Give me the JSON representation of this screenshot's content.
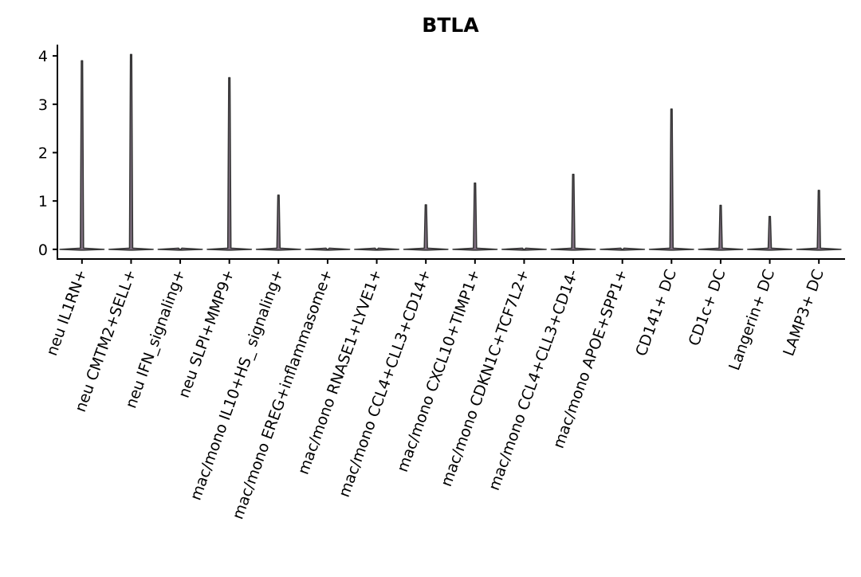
{
  "chart_data": {
    "type": "violin",
    "title": "BTLA",
    "categories": [
      "neu IL1RN+",
      "neu CMTM2+SELL+",
      "neu IFN_signaling+",
      "neu SLPI+MMP9+",
      "mac/mono IL10+HS_ signaling+",
      "mac/mono EREG+inflammasome+",
      "mac/mono RNASE1+LYVE1+",
      "mac/mono CCL4+CLL3+CD14+",
      "mac/mono CXCL10+TIMP1+",
      "mac/mono CDKN1C+TCF7L2+",
      "mac/mono CCL4+CLL3+CD14-",
      "mac/mono APOE+SPP1+",
      "CD141+ DC",
      "CD1c+ DC",
      "Langerin+ DC",
      "LAMP3+ DC"
    ],
    "values": [
      3.9,
      4.03,
      0,
      3.55,
      1.12,
      0,
      0,
      0.92,
      1.37,
      0,
      1.55,
      0,
      2.9,
      0.91,
      0.68,
      1.22
    ],
    "color": "#7f6f80",
    "ylim": [
      -0.2,
      4.2
    ],
    "yticks": [
      0,
      1,
      2,
      3,
      4
    ],
    "grid": false
  }
}
